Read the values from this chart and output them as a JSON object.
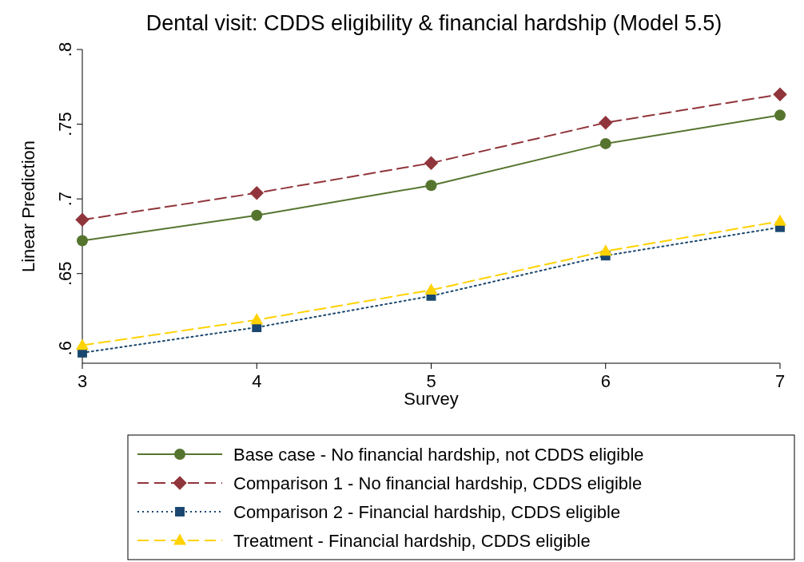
{
  "chart_data": {
    "type": "line",
    "title": "Dental visit: CDDS eligibility & financial hardship (Model 5.5)",
    "xlabel": "Survey",
    "ylabel": "Linear Prediction",
    "x": [
      3,
      4,
      5,
      6,
      7
    ],
    "xlim": [
      3,
      7
    ],
    "xticks": [
      3,
      4,
      5,
      6,
      7
    ],
    "ylim": [
      0.59,
      0.8
    ],
    "yticks": [
      {
        "value": 0.6,
        "label": ".6"
      },
      {
        "value": 0.65,
        "label": ".65"
      },
      {
        "value": 0.7,
        "label": ".7"
      },
      {
        "value": 0.75,
        "label": ".75"
      },
      {
        "value": 0.8,
        "label": ".8"
      }
    ],
    "grid": false,
    "legend": "bottom",
    "series": [
      {
        "name": "Base case - No financial hardship, not CDDS eligible",
        "color": "#55752f",
        "marker": "circle",
        "line_style": "solid",
        "values": [
          0.672,
          0.689,
          0.709,
          0.737,
          0.756
        ]
      },
      {
        "name": "Comparison 1 - No financial hardship, CDDS eligible",
        "color": "#90353b",
        "marker": "diamond",
        "line_style": "dashed",
        "values": [
          0.686,
          0.704,
          0.724,
          0.751,
          0.77
        ]
      },
      {
        "name": "Comparison 2 - Financial hardship, CDDS eligible",
        "color": "#1a476f",
        "marker": "square",
        "line_style": "dotted",
        "values": [
          0.597,
          0.614,
          0.635,
          0.662,
          0.681
        ]
      },
      {
        "name": "Treatment - Financial hardship, CDDS eligible",
        "color": "#ffd200",
        "marker": "triangle",
        "line_style": "dashed",
        "values": [
          0.602,
          0.619,
          0.639,
          0.665,
          0.685
        ]
      }
    ]
  }
}
